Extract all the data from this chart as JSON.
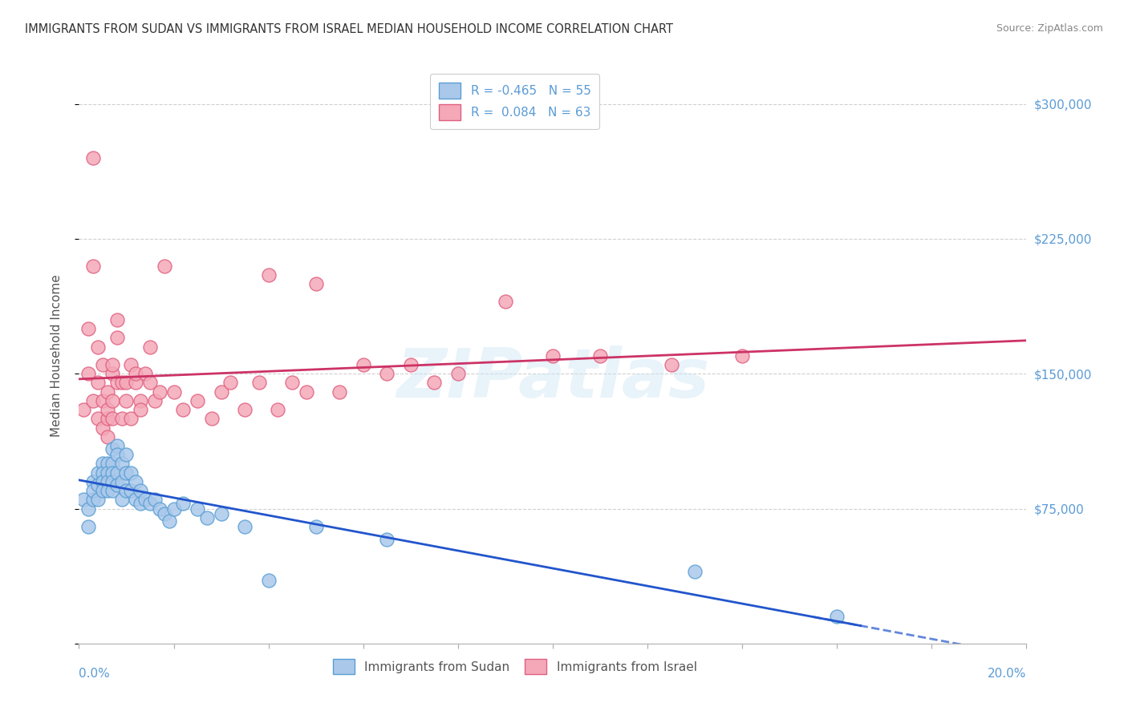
{
  "title": "IMMIGRANTS FROM SUDAN VS IMMIGRANTS FROM ISRAEL MEDIAN HOUSEHOLD INCOME CORRELATION CHART",
  "source": "Source: ZipAtlas.com",
  "ylabel": "Median Household Income",
  "xmin": 0.0,
  "xmax": 0.2,
  "ymin": 0,
  "ymax": 320000,
  "yticks": [
    0,
    75000,
    150000,
    225000,
    300000
  ],
  "ytick_labels": [
    "",
    "$75,000",
    "$150,000",
    "$225,000",
    "$300,000"
  ],
  "grid_color": "#d0d0d0",
  "background_color": "#ffffff",
  "watermark_text": "ZIPatlas",
  "sudan_face": "#aac8ea",
  "sudan_edge": "#5a9fd4",
  "israel_face": "#f4a8b8",
  "israel_edge": "#e06080",
  "trend_sudan": "#2255cc",
  "trend_israel": "#cc3366",
  "R_sudan": -0.465,
  "N_sudan": 55,
  "R_israel": 0.084,
  "N_israel": 63,
  "label_sudan": "Immigrants from Sudan",
  "label_israel": "Immigrants from Israel",
  "title_color": "#333333",
  "source_color": "#888888",
  "axis_color": "#5b9bd5",
  "ylabel_color": "#555555",
  "legend_text_color": "#5b9bd5",
  "bottom_legend_color": "#555555",
  "sudan_x": [
    0.001,
    0.002,
    0.002,
    0.003,
    0.003,
    0.003,
    0.004,
    0.004,
    0.004,
    0.005,
    0.005,
    0.005,
    0.005,
    0.006,
    0.006,
    0.006,
    0.006,
    0.007,
    0.007,
    0.007,
    0.007,
    0.007,
    0.008,
    0.008,
    0.008,
    0.008,
    0.009,
    0.009,
    0.009,
    0.01,
    0.01,
    0.01,
    0.011,
    0.011,
    0.012,
    0.012,
    0.013,
    0.013,
    0.014,
    0.015,
    0.016,
    0.017,
    0.018,
    0.019,
    0.02,
    0.022,
    0.025,
    0.027,
    0.03,
    0.035,
    0.04,
    0.05,
    0.065,
    0.13,
    0.16
  ],
  "sudan_y": [
    80000,
    65000,
    75000,
    80000,
    90000,
    85000,
    95000,
    88000,
    80000,
    100000,
    95000,
    90000,
    85000,
    100000,
    95000,
    90000,
    85000,
    108000,
    100000,
    95000,
    90000,
    85000,
    110000,
    105000,
    95000,
    88000,
    100000,
    90000,
    80000,
    105000,
    95000,
    85000,
    95000,
    85000,
    90000,
    80000,
    85000,
    78000,
    80000,
    78000,
    80000,
    75000,
    72000,
    68000,
    75000,
    78000,
    75000,
    70000,
    72000,
    65000,
    35000,
    65000,
    58000,
    40000,
    15000
  ],
  "israel_x": [
    0.001,
    0.002,
    0.002,
    0.003,
    0.003,
    0.003,
    0.004,
    0.004,
    0.004,
    0.005,
    0.005,
    0.005,
    0.006,
    0.006,
    0.006,
    0.006,
    0.007,
    0.007,
    0.007,
    0.007,
    0.008,
    0.008,
    0.008,
    0.009,
    0.009,
    0.01,
    0.01,
    0.011,
    0.011,
    0.012,
    0.012,
    0.013,
    0.013,
    0.014,
    0.015,
    0.015,
    0.016,
    0.017,
    0.018,
    0.02,
    0.022,
    0.025,
    0.028,
    0.03,
    0.032,
    0.035,
    0.038,
    0.04,
    0.042,
    0.045,
    0.048,
    0.05,
    0.055,
    0.06,
    0.065,
    0.07,
    0.075,
    0.08,
    0.09,
    0.1,
    0.11,
    0.125,
    0.14
  ],
  "israel_y": [
    130000,
    150000,
    175000,
    135000,
    210000,
    270000,
    125000,
    145000,
    165000,
    120000,
    135000,
    155000,
    140000,
    125000,
    115000,
    130000,
    150000,
    135000,
    125000,
    155000,
    170000,
    180000,
    145000,
    125000,
    145000,
    135000,
    145000,
    155000,
    125000,
    145000,
    150000,
    135000,
    130000,
    150000,
    145000,
    165000,
    135000,
    140000,
    210000,
    140000,
    130000,
    135000,
    125000,
    140000,
    145000,
    130000,
    145000,
    205000,
    130000,
    145000,
    140000,
    200000,
    140000,
    155000,
    150000,
    155000,
    145000,
    150000,
    190000,
    160000,
    160000,
    155000,
    160000
  ]
}
